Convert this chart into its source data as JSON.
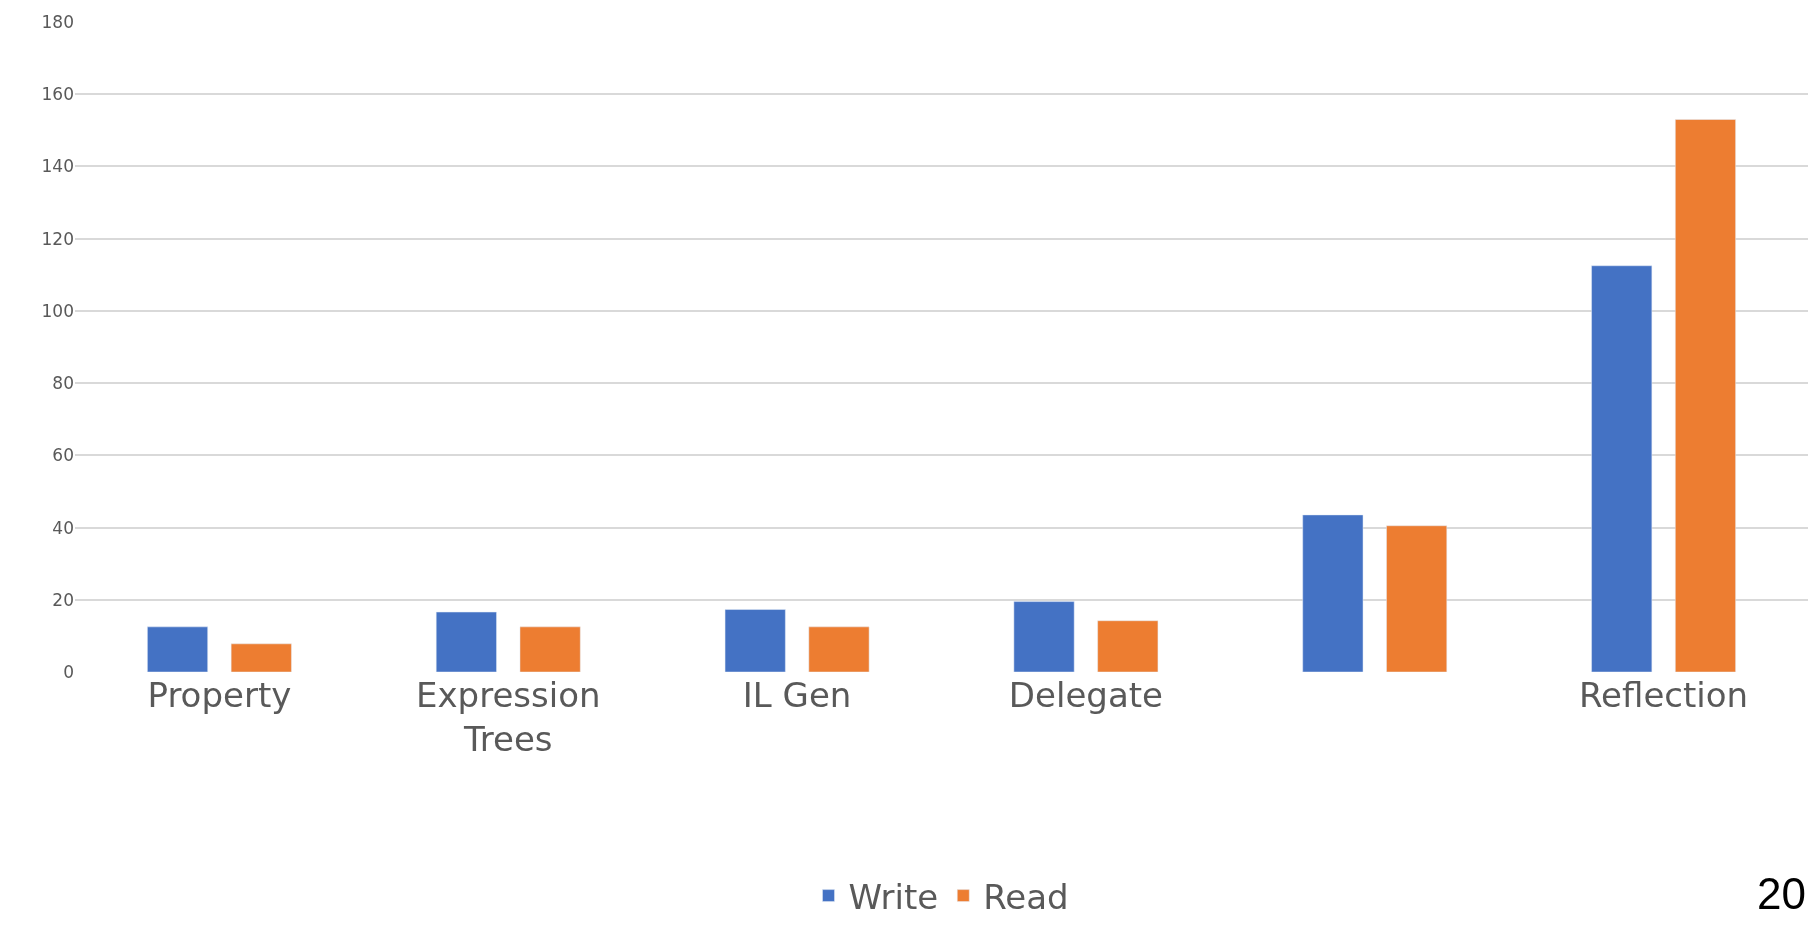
{
  "chart_data": {
    "type": "bar",
    "categories": [
      "Property",
      "Expression\nTrees",
      "IL Gen",
      "Delegate",
      null,
      "Reflection"
    ],
    "series": [
      {
        "name": "Write",
        "color": "#4472c4",
        "values": [
          12.5,
          16.6,
          17.3,
          19.5,
          43.5,
          112.5
        ]
      },
      {
        "name": "Read",
        "color": "#ed7d31",
        "values": [
          7.8,
          12.5,
          12.5,
          14.2,
          40.5,
          153
        ]
      }
    ],
    "ylim": [
      0,
      180
    ],
    "yticks": [
      0,
      20,
      40,
      60,
      80,
      100,
      120,
      140,
      160,
      180
    ],
    "grid": "y",
    "legend": "bottom",
    "annotations": [
      "20"
    ]
  }
}
